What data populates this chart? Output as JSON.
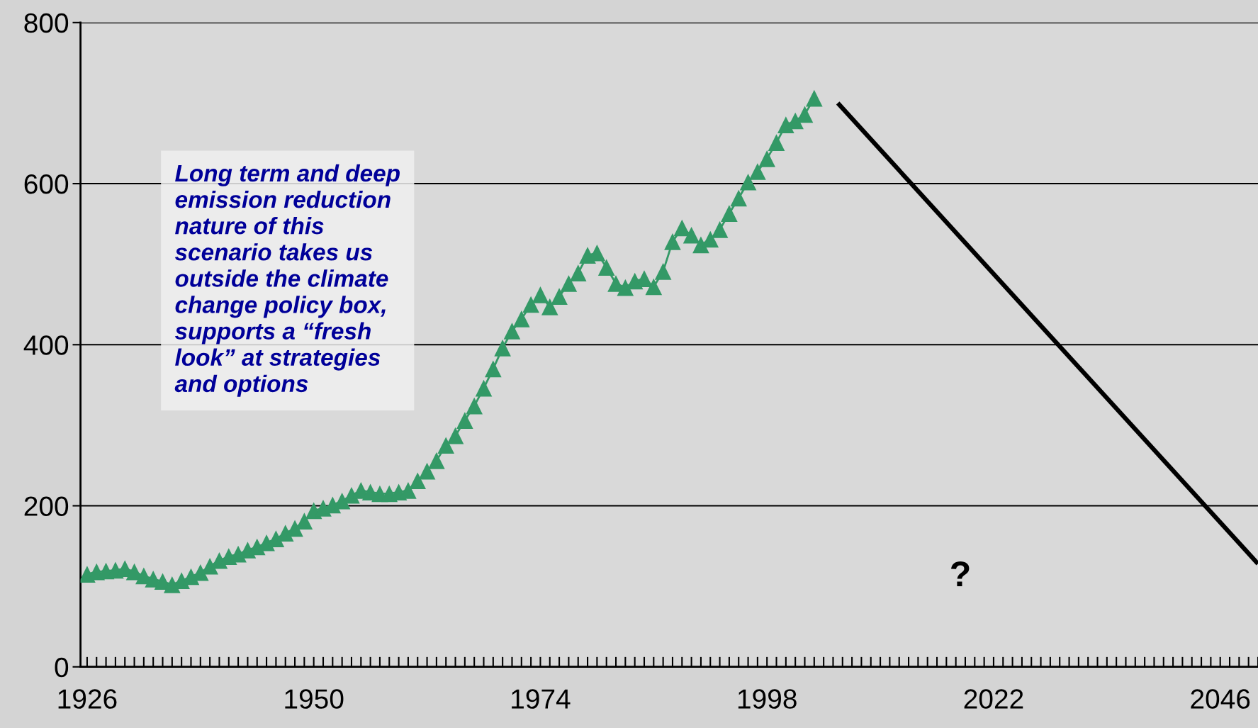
{
  "chart_data": {
    "type": "line",
    "xlim": [
      1925.3,
      2050
    ],
    "xticks": [
      1926,
      1950,
      1974,
      1998,
      2022,
      2046
    ],
    "ylim": [
      0,
      800
    ],
    "yticks": [
      0,
      200,
      400,
      600,
      800
    ],
    "grid": "y",
    "series": [
      {
        "color": "#339966",
        "marker": "triangle",
        "x": [
          1926,
          1927,
          1928,
          1929,
          1930,
          1931,
          1932,
          1933,
          1934,
          1935,
          1936,
          1937,
          1938,
          1939,
          1940,
          1941,
          1942,
          1943,
          1944,
          1945,
          1946,
          1947,
          1948,
          1949,
          1950,
          1951,
          1952,
          1953,
          1954,
          1955,
          1956,
          1957,
          1958,
          1959,
          1960,
          1961,
          1962,
          1963,
          1964,
          1965,
          1966,
          1967,
          1968,
          1969,
          1970,
          1971,
          1972,
          1973,
          1974,
          1975,
          1976,
          1977,
          1978,
          1979,
          1980,
          1981,
          1982,
          1983,
          1984,
          1985,
          1986,
          1987,
          1988,
          1989,
          1990,
          1991,
          1992,
          1993,
          1994,
          1995,
          1996,
          1997,
          1998,
          1999,
          2000,
          2001,
          2002,
          2003
        ],
        "values": [
          115,
          118,
          119,
          120,
          122,
          118,
          113,
          109,
          106,
          102,
          107,
          112,
          117,
          125,
          132,
          137,
          140,
          145,
          149,
          154,
          159,
          166,
          172,
          181,
          194,
          197,
          201,
          206,
          213,
          219,
          217,
          215,
          215,
          217,
          219,
          231,
          243,
          256,
          275,
          287,
          306,
          324,
          346,
          370,
          396,
          417,
          432,
          450,
          462,
          447,
          460,
          476,
          489,
          511,
          514,
          496,
          476,
          471,
          479,
          482,
          472,
          491,
          528,
          545,
          536,
          524,
          531,
          543,
          563,
          582,
          602,
          615,
          631,
          651,
          673,
          678,
          686,
          706
        ]
      },
      {
        "color": "#000000",
        "marker": "none",
        "x": [
          2005.5,
          2050
        ],
        "values": [
          700,
          128
        ]
      }
    ],
    "annotations": [
      "Long term and deep\nemission reduction\nnature of this\nscenario takes us\noutside the climate\nchange policy box,\nsupports a “fresh\nlook” at strategies\nand options",
      "?"
    ]
  }
}
